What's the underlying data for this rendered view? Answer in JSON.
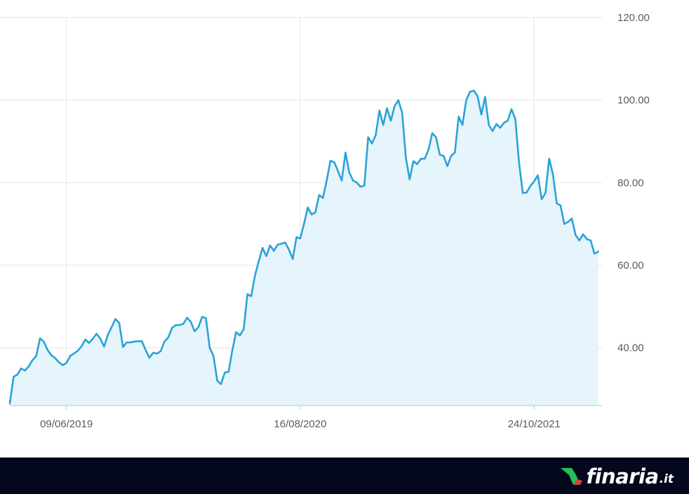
{
  "chart_data": {
    "type": "area",
    "title": "",
    "xlabel": "",
    "ylabel": "",
    "grid": true,
    "legend": "none",
    "ylim": [
      26,
      120
    ],
    "xlim": [
      "2019-02-24",
      "2022-02-27"
    ],
    "y_ticks": [
      "40.00",
      "60.00",
      "80.00",
      "100.00",
      "120.00"
    ],
    "x_ticks": [
      {
        "date": "2019-06-09",
        "label": "09/06/2019"
      },
      {
        "date": "2020-08-16",
        "label": "16/08/2020"
      },
      {
        "date": "2021-10-24",
        "label": "24/10/2021"
      }
    ],
    "colors": {
      "line": "#2aa3d6",
      "fill": "#e6f4fc",
      "grid": "#e4e6e9",
      "axis": "#a9c8dd",
      "tick_text": "#555d66"
    },
    "series": [
      {
        "points": [
          [
            "2019-02-24",
            26.5
          ],
          [
            "2019-03-03",
            33.0
          ],
          [
            "2019-03-10",
            33.5
          ],
          [
            "2019-03-17",
            35.0
          ],
          [
            "2019-03-24",
            34.5
          ],
          [
            "2019-03-31",
            35.5
          ],
          [
            "2019-04-07",
            37.0
          ],
          [
            "2019-04-14",
            38.0
          ],
          [
            "2019-04-21",
            42.3
          ],
          [
            "2019-04-28",
            41.5
          ],
          [
            "2019-05-05",
            39.5
          ],
          [
            "2019-05-12",
            38.2
          ],
          [
            "2019-05-19",
            37.5
          ],
          [
            "2019-05-26",
            36.5
          ],
          [
            "2019-06-02",
            35.8
          ],
          [
            "2019-06-09",
            36.3
          ],
          [
            "2019-06-16",
            38.0
          ],
          [
            "2019-06-23",
            38.6
          ],
          [
            "2019-06-30",
            39.3
          ],
          [
            "2019-07-07",
            40.3
          ],
          [
            "2019-07-14",
            42.0
          ],
          [
            "2019-07-21",
            41.2
          ],
          [
            "2019-07-28",
            42.2
          ],
          [
            "2019-08-04",
            43.4
          ],
          [
            "2019-08-11",
            42.2
          ],
          [
            "2019-08-18",
            40.3
          ],
          [
            "2019-08-25",
            43.2
          ],
          [
            "2019-09-01",
            45.0
          ],
          [
            "2019-09-08",
            47.0
          ],
          [
            "2019-09-15",
            46.0
          ],
          [
            "2019-09-22",
            40.2
          ],
          [
            "2019-09-29",
            41.3
          ],
          [
            "2019-10-06",
            41.3
          ],
          [
            "2019-10-13",
            41.5
          ],
          [
            "2019-10-20",
            41.6
          ],
          [
            "2019-10-27",
            41.6
          ],
          [
            "2019-11-03",
            39.5
          ],
          [
            "2019-11-10",
            37.6
          ],
          [
            "2019-11-17",
            38.8
          ],
          [
            "2019-11-24",
            38.6
          ],
          [
            "2019-12-01",
            39.2
          ],
          [
            "2019-12-08",
            41.5
          ],
          [
            "2019-12-15",
            42.5
          ],
          [
            "2019-12-22",
            44.8
          ],
          [
            "2019-12-29",
            45.5
          ],
          [
            "2020-01-05",
            45.5
          ],
          [
            "2020-01-12",
            45.8
          ],
          [
            "2020-01-19",
            47.3
          ],
          [
            "2020-01-26",
            46.3
          ],
          [
            "2020-02-02",
            44.0
          ],
          [
            "2020-02-09",
            45.0
          ],
          [
            "2020-02-16",
            47.5
          ],
          [
            "2020-02-23",
            47.2
          ],
          [
            "2020-03-01",
            40.0
          ],
          [
            "2020-03-08",
            38.0
          ],
          [
            "2020-03-15",
            32.0
          ],
          [
            "2020-03-22",
            31.2
          ],
          [
            "2020-03-29",
            34.0
          ],
          [
            "2020-04-05",
            34.2
          ],
          [
            "2020-04-12",
            39.5
          ],
          [
            "2020-04-19",
            43.8
          ],
          [
            "2020-04-26",
            43.0
          ],
          [
            "2020-05-03",
            44.5
          ],
          [
            "2020-05-10",
            53.0
          ],
          [
            "2020-05-17",
            52.5
          ],
          [
            "2020-05-24",
            57.5
          ],
          [
            "2020-05-31",
            61.0
          ],
          [
            "2020-06-07",
            64.2
          ],
          [
            "2020-06-14",
            62.2
          ],
          [
            "2020-06-21",
            64.8
          ],
          [
            "2020-06-28",
            63.5
          ],
          [
            "2020-07-05",
            65.0
          ],
          [
            "2020-07-12",
            65.2
          ],
          [
            "2020-07-19",
            65.5
          ],
          [
            "2020-07-26",
            63.8
          ],
          [
            "2020-08-02",
            61.5
          ],
          [
            "2020-08-09",
            66.8
          ],
          [
            "2020-08-16",
            66.5
          ],
          [
            "2020-08-23",
            70.0
          ],
          [
            "2020-08-30",
            74.0
          ],
          [
            "2020-09-06",
            72.3
          ],
          [
            "2020-09-13",
            72.8
          ],
          [
            "2020-09-20",
            77.0
          ],
          [
            "2020-09-27",
            76.3
          ],
          [
            "2020-10-04",
            80.5
          ],
          [
            "2020-10-11",
            85.3
          ],
          [
            "2020-10-18",
            85.0
          ],
          [
            "2020-10-25",
            82.8
          ],
          [
            "2020-11-01",
            80.5
          ],
          [
            "2020-11-08",
            87.3
          ],
          [
            "2020-11-15",
            82.5
          ],
          [
            "2020-11-22",
            80.5
          ],
          [
            "2020-11-29",
            80.0
          ],
          [
            "2020-12-06",
            79.0
          ],
          [
            "2020-12-13",
            79.3
          ],
          [
            "2020-12-20",
            91.0
          ],
          [
            "2020-12-27",
            89.5
          ],
          [
            "2021-01-03",
            91.5
          ],
          [
            "2021-01-10",
            97.5
          ],
          [
            "2021-01-17",
            94.0
          ],
          [
            "2021-01-24",
            98.0
          ],
          [
            "2021-01-31",
            95.0
          ],
          [
            "2021-02-07",
            98.5
          ],
          [
            "2021-02-14",
            100.0
          ],
          [
            "2021-02-21",
            97.0
          ],
          [
            "2021-02-28",
            86.0
          ],
          [
            "2021-03-07",
            80.8
          ],
          [
            "2021-03-14",
            85.2
          ],
          [
            "2021-03-21",
            84.5
          ],
          [
            "2021-03-28",
            85.8
          ],
          [
            "2021-04-04",
            85.8
          ],
          [
            "2021-04-11",
            88.0
          ],
          [
            "2021-04-18",
            92.0
          ],
          [
            "2021-04-25",
            91.0
          ],
          [
            "2021-05-02",
            86.8
          ],
          [
            "2021-05-09",
            86.5
          ],
          [
            "2021-05-16",
            84.0
          ],
          [
            "2021-05-23",
            86.5
          ],
          [
            "2021-05-30",
            87.3
          ],
          [
            "2021-06-06",
            96.0
          ],
          [
            "2021-06-13",
            94.0
          ],
          [
            "2021-06-20",
            100.0
          ],
          [
            "2021-06-27",
            102.0
          ],
          [
            "2021-07-04",
            102.3
          ],
          [
            "2021-07-11",
            101.0
          ],
          [
            "2021-07-18",
            96.5
          ],
          [
            "2021-07-25",
            100.8
          ],
          [
            "2021-08-01",
            94.0
          ],
          [
            "2021-08-08",
            92.5
          ],
          [
            "2021-08-15",
            94.2
          ],
          [
            "2021-08-22",
            93.3
          ],
          [
            "2021-08-29",
            94.5
          ],
          [
            "2021-09-05",
            95.0
          ],
          [
            "2021-09-12",
            97.8
          ],
          [
            "2021-09-19",
            95.5
          ],
          [
            "2021-09-26",
            85.0
          ],
          [
            "2021-10-03",
            77.5
          ],
          [
            "2021-10-10",
            77.6
          ],
          [
            "2021-10-17",
            79.2
          ],
          [
            "2021-10-24",
            80.3
          ],
          [
            "2021-10-31",
            81.8
          ],
          [
            "2021-11-07",
            76.0
          ],
          [
            "2021-11-14",
            77.5
          ],
          [
            "2021-11-21",
            85.8
          ],
          [
            "2021-11-28",
            82.0
          ],
          [
            "2021-12-05",
            75.0
          ],
          [
            "2021-12-12",
            74.5
          ],
          [
            "2021-12-19",
            70.0
          ],
          [
            "2021-12-26",
            70.5
          ],
          [
            "2022-01-02",
            71.3
          ],
          [
            "2022-01-09",
            67.3
          ],
          [
            "2022-01-16",
            66.0
          ],
          [
            "2022-01-23",
            67.5
          ],
          [
            "2022-01-30",
            66.3
          ],
          [
            "2022-02-06",
            66.0
          ],
          [
            "2022-02-13",
            62.8
          ],
          [
            "2022-02-20",
            63.3
          ]
        ]
      }
    ]
  },
  "footer": {
    "brand_name": "finaria",
    "brand_tld": ".it",
    "logo_icon": "finaria-logo-icon",
    "colors": {
      "background": "#03081c",
      "text": "#ffffff",
      "logo_green": "#21c35a",
      "logo_red": "#e03a3a"
    }
  }
}
